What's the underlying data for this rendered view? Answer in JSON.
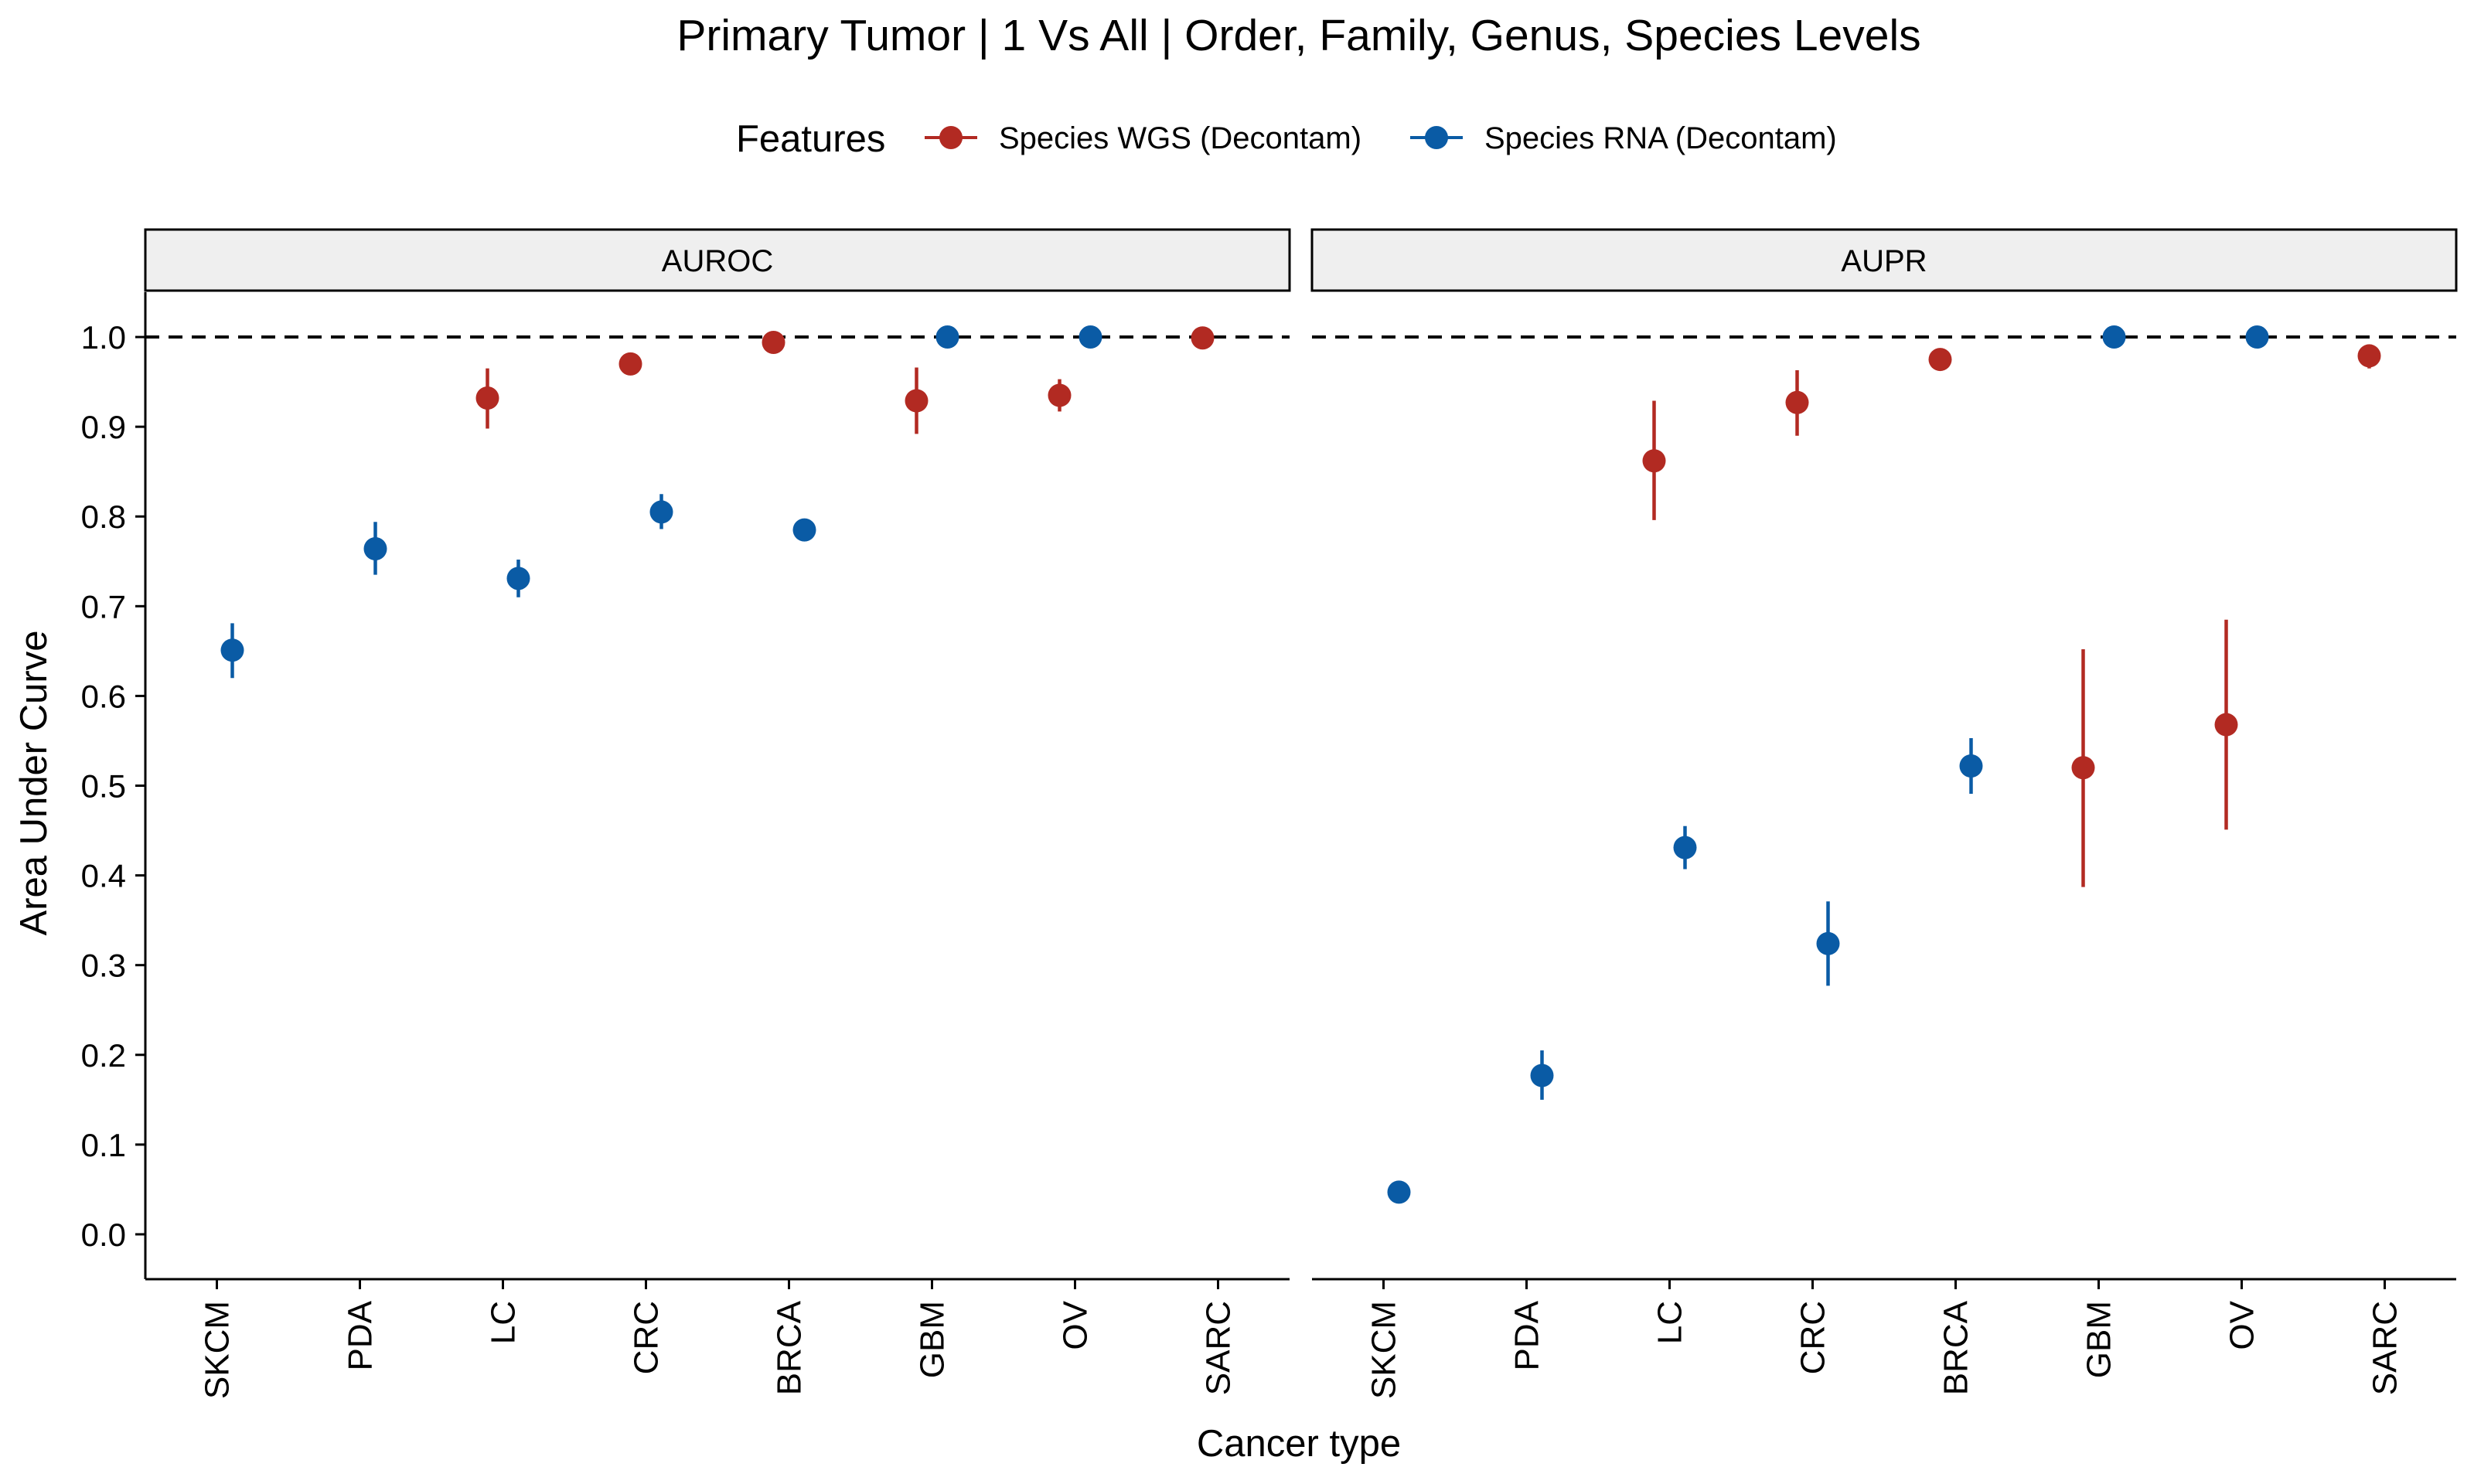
{
  "chart_data": {
    "type": "scatter",
    "title": "Primary Tumor | 1 Vs All | Order, Family, Genus, Species Levels",
    "xlabel": "Cancer type",
    "ylabel": "Area Under Curve",
    "ylim": [
      -0.05,
      1.05
    ],
    "yticks": [
      "0.0",
      "0.1",
      "0.2",
      "0.3",
      "0.4",
      "0.5",
      "0.6",
      "0.7",
      "0.8",
      "0.9",
      "1.0"
    ],
    "categories": [
      "SKCM",
      "PDA",
      "LC",
      "CRC",
      "BRCA",
      "GBM",
      "OV",
      "SARC"
    ],
    "reference_line": 1.0,
    "legend": {
      "title": "Features",
      "position": "top",
      "items": [
        {
          "label": "Species WGS (Decontam)",
          "color": "#B22A22"
        },
        {
          "label": "Species RNA (Decontam)",
          "color": "#0A5BA5"
        }
      ]
    },
    "panels": [
      {
        "name": "AUROC",
        "series": [
          {
            "name": "Species WGS (Decontam)",
            "color": "#B22A22",
            "points": [
              {
                "category": "LC",
                "y": 0.932,
                "low": 0.898,
                "high": 0.965
              },
              {
                "category": "CRC",
                "y": 0.97,
                "low": 0.962,
                "high": 0.978
              },
              {
                "category": "BRCA",
                "y": 0.994,
                "low": 0.99,
                "high": 0.998
              },
              {
                "category": "GBM",
                "y": 0.929,
                "low": 0.892,
                "high": 0.966
              },
              {
                "category": "OV",
                "y": 0.935,
                "low": 0.917,
                "high": 0.953
              },
              {
                "category": "SARC",
                "y": 0.999,
                "low": 0.997,
                "high": 1.0
              }
            ]
          },
          {
            "name": "Species RNA (Decontam)",
            "color": "#0A5BA5",
            "points": [
              {
                "category": "SKCM",
                "y": 0.651,
                "low": 0.62,
                "high": 0.681
              },
              {
                "category": "PDA",
                "y": 0.764,
                "low": 0.735,
                "high": 0.794
              },
              {
                "category": "LC",
                "y": 0.731,
                "low": 0.71,
                "high": 0.752
              },
              {
                "category": "CRC",
                "y": 0.805,
                "low": 0.786,
                "high": 0.825
              },
              {
                "category": "BRCA",
                "y": 0.785,
                "low": 0.785,
                "high": 0.785
              },
              {
                "category": "GBM",
                "y": 1.0,
                "low": 1.0,
                "high": 1.0
              },
              {
                "category": "OV",
                "y": 1.0,
                "low": 1.0,
                "high": 1.0
              }
            ]
          }
        ]
      },
      {
        "name": "AUPR",
        "series": [
          {
            "name": "Species WGS (Decontam)",
            "color": "#B22A22",
            "points": [
              {
                "category": "LC",
                "y": 0.862,
                "low": 0.796,
                "high": 0.929
              },
              {
                "category": "CRC",
                "y": 0.927,
                "low": 0.89,
                "high": 0.963
              },
              {
                "category": "BRCA",
                "y": 0.975,
                "low": 0.97,
                "high": 0.98
              },
              {
                "category": "GBM",
                "y": 0.52,
                "low": 0.387,
                "high": 0.652
              },
              {
                "category": "OV",
                "y": 0.568,
                "low": 0.451,
                "high": 0.685
              },
              {
                "category": "SARC",
                "y": 0.979,
                "low": 0.965,
                "high": 0.99
              }
            ]
          },
          {
            "name": "Species RNA (Decontam)",
            "color": "#0A5BA5",
            "points": [
              {
                "category": "SKCM",
                "y": 0.047,
                "low": 0.047,
                "high": 0.047
              },
              {
                "category": "PDA",
                "y": 0.177,
                "low": 0.15,
                "high": 0.205
              },
              {
                "category": "LC",
                "y": 0.431,
                "low": 0.407,
                "high": 0.455
              },
              {
                "category": "CRC",
                "y": 0.324,
                "low": 0.277,
                "high": 0.371
              },
              {
                "category": "BRCA",
                "y": 0.522,
                "low": 0.491,
                "high": 0.553
              },
              {
                "category": "GBM",
                "y": 1.0,
                "low": 1.0,
                "high": 1.0
              },
              {
                "category": "OV",
                "y": 1.0,
                "low": 1.0,
                "high": 1.0
              }
            ]
          }
        ]
      }
    ]
  }
}
